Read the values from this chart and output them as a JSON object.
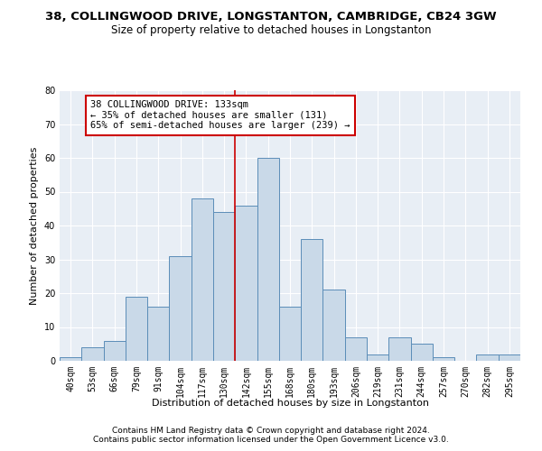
{
  "title": "38, COLLINGWOOD DRIVE, LONGSTANTON, CAMBRIDGE, CB24 3GW",
  "subtitle": "Size of property relative to detached houses in Longstanton",
  "xlabel": "Distribution of detached houses by size in Longstanton",
  "ylabel": "Number of detached properties",
  "footnote1": "Contains HM Land Registry data © Crown copyright and database right 2024.",
  "footnote2": "Contains public sector information licensed under the Open Government Licence v3.0.",
  "bar_labels": [
    "40sqm",
    "53sqm",
    "66sqm",
    "79sqm",
    "91sqm",
    "104sqm",
    "117sqm",
    "130sqm",
    "142sqm",
    "155sqm",
    "168sqm",
    "180sqm",
    "193sqm",
    "206sqm",
    "219sqm",
    "231sqm",
    "244sqm",
    "257sqm",
    "270sqm",
    "282sqm",
    "295sqm"
  ],
  "bar_values": [
    1,
    4,
    6,
    19,
    16,
    31,
    48,
    44,
    46,
    60,
    16,
    36,
    21,
    7,
    2,
    7,
    5,
    1,
    0,
    2,
    2
  ],
  "bar_color": "#c9d9e8",
  "bar_edgecolor": "#5b8db8",
  "vline_idx": 7,
  "vline_color": "#cc0000",
  "annotation_text": "38 COLLINGWOOD DRIVE: 133sqm\n← 35% of detached houses are smaller (131)\n65% of semi-detached houses are larger (239) →",
  "annotation_box_color": "#ffffff",
  "annotation_box_edgecolor": "#cc0000",
  "ylim": [
    0,
    80
  ],
  "yticks": [
    0,
    10,
    20,
    30,
    40,
    50,
    60,
    70,
    80
  ],
  "bg_color": "#e8eef5",
  "title_fontsize": 9.5,
  "subtitle_fontsize": 8.5,
  "axis_fontsize": 8,
  "tick_fontsize": 7,
  "annotation_fontsize": 7.5,
  "footnote_fontsize": 6.5
}
